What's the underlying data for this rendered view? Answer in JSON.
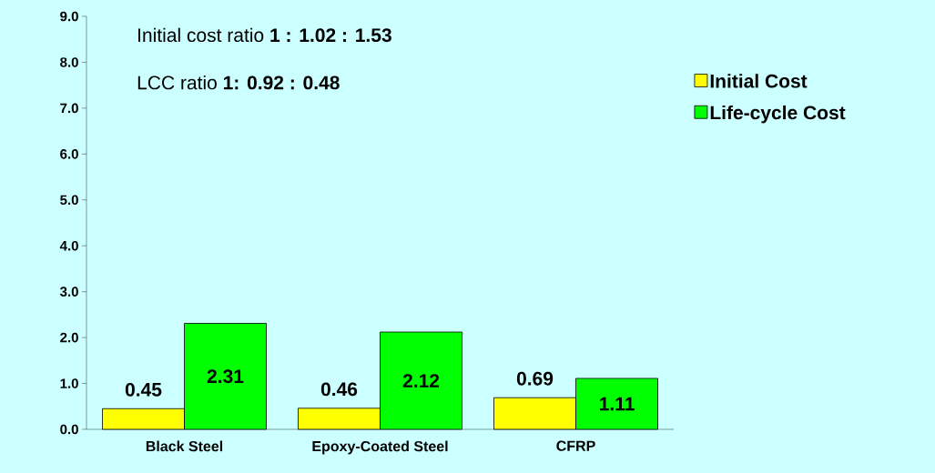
{
  "chart_data": {
    "type": "bar",
    "categories": [
      "Black Steel",
      "Epoxy-Coated Steel",
      "CFRP"
    ],
    "series": [
      {
        "name": "Initial Cost",
        "color": "#ffff00",
        "values": [
          0.45,
          0.46,
          0.69
        ]
      },
      {
        "name": "Life-cycle Cost",
        "color": "#00ff00",
        "values": [
          2.31,
          2.12,
          1.11
        ]
      }
    ],
    "ylim": [
      0,
      9
    ],
    "yticks": [
      {
        "value": 0,
        "label": "0.0"
      },
      {
        "value": 1,
        "label": "1.0"
      },
      {
        "value": 2,
        "label": "2.0"
      },
      {
        "value": 3,
        "label": "3.0"
      },
      {
        "value": 4,
        "label": "4.0"
      },
      {
        "value": 5,
        "label": "5.0"
      },
      {
        "value": 6,
        "label": "6.0"
      },
      {
        "value": 7,
        "label": "7.0"
      },
      {
        "value": 8,
        "label": "8.0"
      },
      {
        "value": 9,
        "label": "9.0"
      }
    ],
    "annotations": [
      "Initial cost ratio  **1 : 1.02 : 1.53**",
      "LCC ratio  **1: 0.92 : 0.48**"
    ],
    "data_labels": true,
    "legend": "right",
    "grid": false
  }
}
